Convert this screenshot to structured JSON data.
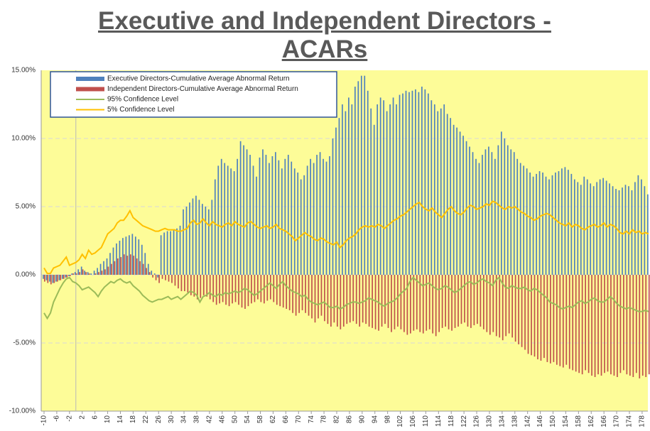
{
  "chart_data": {
    "type": "bar_line",
    "title": "Executive and Independent Directors - ACARs",
    "categories": [
      -10,
      null,
      null,
      null,
      -6,
      null,
      null,
      null,
      -2,
      null,
      null,
      null,
      2,
      null,
      null,
      null,
      6,
      null,
      null,
      null,
      10,
      null,
      null,
      null,
      14,
      null,
      null,
      null,
      18,
      null,
      null,
      null,
      22,
      null,
      null,
      null,
      26,
      null,
      null,
      null,
      30,
      null,
      null,
      null,
      34,
      null,
      null,
      null,
      38,
      null,
      null,
      null,
      42,
      null,
      null,
      null,
      46,
      null,
      null,
      null,
      50,
      null,
      null,
      null,
      54,
      null,
      null,
      null,
      58,
      null,
      null,
      null,
      62,
      null,
      null,
      null,
      66,
      null,
      null,
      null,
      70,
      null,
      null,
      null,
      74,
      null,
      null,
      null,
      78,
      null,
      null,
      null,
      82,
      null,
      null,
      null,
      86,
      null,
      null,
      null,
      90,
      null,
      null,
      null,
      94,
      null,
      null,
      null,
      98,
      null,
      null,
      null,
      102,
      null,
      null,
      null,
      106,
      null,
      null,
      null,
      110,
      null,
      null,
      null,
      114,
      null,
      null,
      null,
      118,
      null,
      null,
      null,
      122,
      null,
      null,
      null,
      126,
      null,
      null,
      null,
      130,
      null,
      null,
      null,
      134,
      null,
      null,
      null,
      138,
      null,
      null,
      null,
      142,
      null,
      null,
      null,
      146,
      null,
      null,
      null,
      150,
      null,
      null,
      null,
      154,
      null,
      null,
      null,
      158,
      null,
      null,
      null,
      162,
      null,
      null,
      null,
      166,
      null,
      null,
      null,
      170,
      null,
      null,
      null,
      174,
      null,
      null,
      null,
      178,
      null,
      null
    ],
    "series": [
      {
        "name": "Executive Directors-Cumulative Average Abnormal Return",
        "kind": "bar",
        "color": "#4f81bd",
        "values": [
          -0.3,
          -0.4,
          -0.5,
          -0.6,
          -0.5,
          -0.4,
          -0.3,
          -0.2,
          -0.1,
          0.1,
          0.2,
          0.4,
          0.6,
          0.3,
          0.2,
          0.1,
          0.3,
          0.5,
          0.8,
          1.0,
          1.2,
          1.6,
          2.0,
          2.3,
          2.5,
          2.7,
          2.8,
          2.9,
          3.0,
          2.8,
          2.6,
          2.2,
          1.6,
          0.8,
          0.3,
          0.1,
          -0.2,
          2.9,
          3.1,
          3.2,
          3.2,
          3.3,
          3.4,
          3.6,
          4.8,
          5.0,
          5.3,
          5.6,
          5.8,
          5.5,
          5.2,
          5.0,
          4.8,
          5.5,
          7.0,
          8.0,
          8.5,
          8.2,
          8.0,
          7.8,
          7.6,
          8.5,
          9.8,
          9.5,
          9.2,
          8.8,
          8.0,
          7.2,
          8.6,
          9.2,
          8.8,
          8.2,
          8.7,
          9.0,
          8.4,
          7.8,
          8.5,
          8.8,
          8.3,
          7.8,
          7.5,
          7.0,
          7.3,
          8.0,
          8.5,
          8.2,
          8.8,
          9.0,
          8.5,
          8.3,
          8.7,
          10.0,
          10.8,
          11.5,
          12.5,
          12.0,
          13.0,
          12.5,
          13.8,
          14.2,
          14.6,
          14.6,
          13.5,
          12.2,
          11.0,
          12.5,
          13.0,
          12.8,
          12.0,
          12.5,
          13.0,
          12.5,
          13.2,
          13.3,
          13.5,
          13.4,
          13.5,
          13.6,
          13.4,
          13.8,
          13.6,
          13.3,
          12.8,
          12.5,
          12.0,
          12.2,
          12.5,
          11.8,
          11.5,
          11.0,
          10.8,
          10.5,
          10.2,
          9.8,
          9.4,
          9.0,
          8.5,
          8.2,
          8.8,
          9.2,
          9.4,
          9.0,
          8.5,
          9.5,
          10.5,
          10.0,
          9.5,
          9.2,
          9.0,
          8.5,
          8.2,
          8.0,
          7.8,
          7.5,
          7.2,
          7.4,
          7.6,
          7.5,
          7.2,
          7.0,
          7.3,
          7.5,
          7.6,
          7.8,
          7.9,
          7.7,
          7.4,
          7.0,
          6.8,
          6.6,
          7.2,
          7.0,
          6.7,
          6.5,
          6.8,
          7.0,
          7.1,
          6.9,
          6.7,
          6.5,
          6.3,
          6.2,
          6.4,
          6.6,
          6.5,
          6.2,
          6.8,
          7.3,
          7.0,
          6.5,
          5.9
        ]
      },
      {
        "name": "Independent Directors-Cumulative Average Abnormal Return",
        "kind": "bar",
        "color": "#c0504d",
        "values": [
          -0.5,
          -0.6,
          -0.7,
          -0.6,
          -0.5,
          -0.4,
          -0.3,
          -0.2,
          -0.1,
          0.1,
          0.1,
          0.2,
          0.4,
          0.2,
          0.1,
          0.0,
          0.1,
          0.2,
          0.3,
          0.4,
          0.6,
          0.8,
          1.0,
          1.2,
          1.3,
          1.5,
          1.4,
          1.5,
          1.4,
          1.2,
          1.0,
          0.8,
          0.5,
          0.2,
          -0.2,
          -0.4,
          -0.6,
          -0.3,
          -0.4,
          -0.5,
          -0.6,
          -0.8,
          -1.0,
          -1.2,
          -1.2,
          -1.3,
          -1.5,
          -1.6,
          -1.8,
          -1.7,
          -1.5,
          -1.6,
          -1.8,
          -2.0,
          -2.2,
          -2.1,
          -2.0,
          -2.2,
          -2.3,
          -2.1,
          -2.0,
          -2.2,
          -2.4,
          -2.5,
          -2.3,
          -2.1,
          -2.0,
          -1.8,
          -2.0,
          -2.1,
          -1.9,
          -1.8,
          -2.0,
          -2.2,
          -2.3,
          -2.4,
          -2.5,
          -2.6,
          -2.8,
          -3.0,
          -2.8,
          -2.6,
          -2.8,
          -3.0,
          -3.2,
          -3.5,
          -3.2,
          -3.0,
          -3.4,
          -3.6,
          -3.8,
          -3.5,
          -3.8,
          -4.0,
          -3.8,
          -3.6,
          -3.5,
          -3.4,
          -3.6,
          -3.8,
          -3.5,
          -3.6,
          -3.8,
          -3.9,
          -4.0,
          -4.1,
          -3.8,
          -3.6,
          -3.9,
          -4.2,
          -4.0,
          -3.8,
          -4.0,
          -4.2,
          -4.4,
          -4.3,
          -4.1,
          -4.0,
          -4.2,
          -4.3,
          -4.1,
          -4.0,
          -4.3,
          -4.5,
          -4.2,
          -3.9,
          -3.8,
          -4.0,
          -4.1,
          -3.9,
          -3.8,
          -3.6,
          -3.5,
          -3.8,
          -3.9,
          -3.7,
          -3.6,
          -3.8,
          -4.0,
          -4.2,
          -4.4,
          -4.2,
          -4.5,
          -4.6,
          -4.8,
          -4.5,
          -4.3,
          -4.6,
          -4.9,
          -5.1,
          -5.3,
          -5.5,
          -5.8,
          -5.9,
          -6.0,
          -6.2,
          -6.3,
          -6.1,
          -6.4,
          -6.5,
          -6.4,
          -6.6,
          -6.7,
          -6.8,
          -6.6,
          -6.9,
          -7.0,
          -7.1,
          -7.2,
          -7.3,
          -7.0,
          -7.2,
          -7.4,
          -7.5,
          -7.3,
          -7.4,
          -7.2,
          -7.1,
          -7.3,
          -7.4,
          -7.5,
          -7.2,
          -7.0,
          -7.3,
          -7.4,
          -7.5,
          -7.2,
          -7.6,
          -7.4,
          -7.5,
          -7.3
        ]
      },
      {
        "name": "95% Confidence Level",
        "kind": "line",
        "color": "#9bbb59",
        "values": [
          -2.8,
          -3.2,
          -2.8,
          -2.0,
          -1.5,
          -1.0,
          -0.6,
          -0.3,
          -0.2,
          -0.5,
          -0.6,
          -0.8,
          -1.1,
          -1.0,
          -0.9,
          -1.1,
          -1.3,
          -1.6,
          -1.2,
          -0.9,
          -0.7,
          -0.5,
          -0.6,
          -0.4,
          -0.3,
          -0.5,
          -0.6,
          -0.5,
          -0.8,
          -1.0,
          -1.2,
          -1.5,
          -1.7,
          -1.9,
          -2.0,
          -1.9,
          -1.8,
          -1.8,
          -1.7,
          -1.6,
          -1.8,
          -1.7,
          -1.6,
          -1.8,
          -1.6,
          -1.4,
          -1.2,
          -1.3,
          -1.5,
          -2.0,
          -1.6,
          -1.5,
          -1.3,
          -1.5,
          -1.6,
          -1.4,
          -1.5,
          -1.3,
          -1.4,
          -1.3,
          -1.2,
          -1.3,
          -1.2,
          -1.0,
          -1.1,
          -1.3,
          -1.5,
          -1.4,
          -1.2,
          -1.0,
          -0.8,
          -0.6,
          -0.8,
          -1.0,
          -0.7,
          -0.5,
          -0.8,
          -1.0,
          -1.2,
          -1.3,
          -1.4,
          -1.6,
          -1.5,
          -1.8,
          -2.0,
          -2.1,
          -2.2,
          -2.1,
          -2.0,
          -2.2,
          -2.4,
          -2.4,
          -2.3,
          -2.5,
          -2.4,
          -2.2,
          -2.1,
          -2.0,
          -2.0,
          -2.1,
          -2.0,
          -1.9,
          -1.7,
          -1.8,
          -1.9,
          -2.0,
          -2.2,
          -2.3,
          -2.1,
          -2.0,
          -1.9,
          -1.7,
          -1.4,
          -1.2,
          -1.0,
          -0.5,
          -0.2,
          -0.4,
          -0.6,
          -0.8,
          -0.7,
          -0.6,
          -0.8,
          -1.0,
          -1.1,
          -1.0,
          -0.8,
          -0.9,
          -1.1,
          -1.3,
          -1.2,
          -1.0,
          -0.8,
          -0.6,
          -0.5,
          -0.7,
          -0.6,
          -0.4,
          -0.3,
          -0.5,
          -0.6,
          -0.8,
          -0.4,
          -0.2,
          -0.6,
          -0.9,
          -1.0,
          -0.8,
          -0.9,
          -1.0,
          -1.0,
          -0.9,
          -1.1,
          -1.2,
          -1.0,
          -1.1,
          -1.3,
          -1.5,
          -1.7,
          -2.0,
          -2.1,
          -2.2,
          -2.4,
          -2.5,
          -2.4,
          -2.3,
          -2.4,
          -2.2,
          -2.0,
          -1.9,
          -2.1,
          -2.0,
          -1.8,
          -1.7,
          -1.9,
          -2.0,
          -2.0,
          -1.8,
          -1.6,
          -1.8,
          -2.1,
          -2.3,
          -2.4,
          -2.5,
          -2.4,
          -2.5,
          -2.6,
          -2.7,
          -2.7,
          -2.6,
          -2.7
        ]
      },
      {
        "name": "5% Confidence Level",
        "kind": "line",
        "color": "#ffc000",
        "values": [
          0.5,
          0.1,
          0.1,
          0.5,
          0.6,
          0.7,
          1.0,
          1.3,
          0.7,
          0.8,
          0.9,
          1.1,
          1.5,
          1.2,
          1.8,
          1.5,
          1.6,
          1.8,
          2.0,
          2.5,
          3.0,
          3.2,
          3.4,
          3.8,
          4.0,
          4.0,
          4.3,
          4.7,
          4.2,
          4.0,
          3.8,
          3.6,
          3.5,
          3.4,
          3.3,
          3.2,
          3.2,
          3.3,
          3.4,
          3.3,
          3.3,
          3.3,
          3.2,
          3.2,
          3.3,
          3.4,
          3.8,
          4.0,
          3.7,
          3.8,
          4.1,
          3.8,
          3.6,
          3.9,
          3.7,
          3.6,
          3.5,
          3.7,
          3.8,
          3.6,
          3.9,
          3.7,
          3.6,
          3.5,
          3.8,
          3.9,
          3.7,
          3.5,
          3.4,
          3.5,
          3.6,
          3.4,
          3.5,
          3.7,
          3.4,
          3.3,
          3.2,
          3.0,
          2.8,
          2.5,
          2.7,
          2.9,
          3.1,
          2.9,
          2.8,
          2.6,
          2.5,
          2.7,
          2.6,
          2.4,
          2.3,
          2.2,
          2.4,
          2.0,
          2.2,
          2.5,
          2.7,
          2.8,
          3.0,
          3.3,
          3.5,
          3.6,
          3.5,
          3.6,
          3.5,
          3.7,
          3.6,
          3.4,
          3.6,
          3.8,
          4.0,
          4.1,
          4.3,
          4.4,
          4.6,
          4.8,
          5.0,
          5.2,
          5.3,
          5.0,
          4.8,
          4.7,
          4.9,
          4.6,
          4.4,
          4.2,
          4.5,
          4.8,
          5.0,
          4.7,
          4.5,
          4.4,
          4.6,
          4.9,
          5.1,
          5.0,
          4.8,
          4.9,
          5.0,
          5.2,
          5.1,
          5.4,
          5.3,
          5.1,
          4.9,
          4.8,
          5.0,
          4.9,
          5.0,
          4.8,
          4.6,
          4.5,
          4.3,
          4.2,
          4.0,
          4.1,
          4.3,
          4.4,
          4.5,
          4.4,
          4.2,
          4.0,
          3.8,
          3.7,
          3.6,
          3.8,
          3.5,
          3.7,
          3.6,
          3.4,
          3.3,
          3.5,
          3.6,
          3.7,
          3.5,
          3.6,
          3.8,
          3.5,
          3.7,
          3.6,
          3.4,
          3.1,
          3.0,
          3.2,
          3.0,
          3.3,
          3.1,
          3.2,
          3.0,
          3.1,
          3.0
        ]
      }
    ],
    "ylim": [
      -10,
      15
    ],
    "yticks": [
      {
        "value": -10,
        "label": "-10.00%"
      },
      {
        "value": -5,
        "label": "-5.00%"
      },
      {
        "value": 0,
        "label": "0.00%"
      },
      {
        "value": 5,
        "label": "5.00%"
      },
      {
        "value": 10,
        "label": "10.00%"
      },
      {
        "value": 15,
        "label": "15.00%"
      }
    ],
    "grid": true,
    "legend": "top-left"
  }
}
